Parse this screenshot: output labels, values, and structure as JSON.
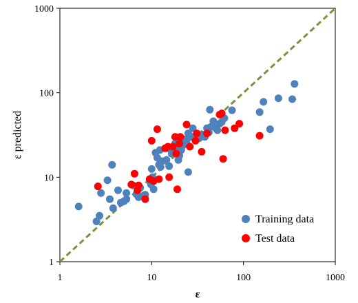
{
  "chart_data": {
    "type": "scatter",
    "title": "",
    "xlabel": "ε",
    "ylabel": "ε  predicted",
    "xscale": "log",
    "yscale": "log",
    "xlim": [
      1,
      1000
    ],
    "ylim": [
      1,
      1000
    ],
    "xticks": [
      1,
      10,
      100,
      1000
    ],
    "yticks": [
      1,
      10,
      100,
      1000
    ],
    "xtick_labels": [
      "1",
      "10",
      "100",
      "1000"
    ],
    "ytick_labels": [
      "1",
      "10",
      "100",
      "1000"
    ],
    "grid": false,
    "legend_position": "bottom-right",
    "reference_line": {
      "type": "y=x",
      "style": "dashed",
      "color": "#77933c"
    },
    "series": [
      {
        "name": "Training data",
        "color": "#4f81bd",
        "points": [
          [
            1.6,
            4.5
          ],
          [
            2.5,
            3.0
          ],
          [
            2.7,
            3.5
          ],
          [
            2.8,
            6.5
          ],
          [
            3.3,
            9.2
          ],
          [
            3.5,
            5.5
          ],
          [
            3.7,
            14.0
          ],
          [
            3.8,
            4.3
          ],
          [
            4.3,
            7.0
          ],
          [
            4.6,
            5.0
          ],
          [
            5.0,
            5.2
          ],
          [
            5.3,
            5.5
          ],
          [
            5.3,
            6.5
          ],
          [
            6.3,
            8.0
          ],
          [
            6.8,
            6.3
          ],
          [
            7.2,
            5.8
          ],
          [
            7.5,
            7.5
          ],
          [
            8.0,
            6.0
          ],
          [
            8.5,
            6.2
          ],
          [
            9.5,
            9.0
          ],
          [
            9.8,
            8.2
          ],
          [
            10.0,
            12.5
          ],
          [
            10.2,
            10.0
          ],
          [
            10.5,
            7.2
          ],
          [
            11.0,
            19.5
          ],
          [
            11.5,
            17.0
          ],
          [
            12.0,
            14.0
          ],
          [
            12.3,
            21.0
          ],
          [
            12.5,
            13.2
          ],
          [
            13.0,
            15.5
          ],
          [
            14.5,
            16.0
          ],
          [
            15.0,
            22.0
          ],
          [
            15.5,
            13.5
          ],
          [
            16.5,
            19.0
          ],
          [
            17.5,
            20.0
          ],
          [
            18.0,
            25.0
          ],
          [
            18.5,
            22.0
          ],
          [
            19.5,
            16.0
          ],
          [
            20.0,
            18.0
          ],
          [
            21.0,
            21.0
          ],
          [
            22.0,
            24.0
          ],
          [
            23.0,
            28.0
          ],
          [
            24.0,
            26.0
          ],
          [
            25.0,
            33.0
          ],
          [
            25.0,
            11.5
          ],
          [
            26.0,
            31.0
          ],
          [
            27.0,
            30.0
          ],
          [
            28.0,
            38.0
          ],
          [
            30.0,
            28.0
          ],
          [
            33.0,
            29.0
          ],
          [
            36.0,
            32.0
          ],
          [
            38.0,
            30.0
          ],
          [
            40.0,
            38.0
          ],
          [
            42.0,
            34.0
          ],
          [
            43.0,
            63.0
          ],
          [
            45.0,
            40.0
          ],
          [
            47.0,
            46.0
          ],
          [
            50.0,
            38.0
          ],
          [
            52.0,
            36.0
          ],
          [
            55.0,
            43.0
          ],
          [
            58.0,
            45.0
          ],
          [
            62.0,
            50.0
          ],
          [
            75.0,
            62.0
          ],
          [
            150.0,
            59.0
          ],
          [
            165.0,
            78.0
          ],
          [
            195.0,
            37.0
          ],
          [
            240.0,
            86.0
          ],
          [
            340.0,
            84.0
          ],
          [
            360.0,
            127.0
          ]
        ]
      },
      {
        "name": "Test data",
        "color": "#ff0000",
        "points": [
          [
            2.6,
            7.8
          ],
          [
            6.0,
            8.2
          ],
          [
            6.5,
            11.0
          ],
          [
            7.0,
            7.0
          ],
          [
            7.2,
            8.0
          ],
          [
            8.5,
            5.5
          ],
          [
            9.5,
            9.5
          ],
          [
            10.0,
            27.0
          ],
          [
            10.5,
            9.0
          ],
          [
            11.5,
            37.0
          ],
          [
            12.0,
            9.5
          ],
          [
            14.0,
            22.0
          ],
          [
            15.0,
            23.0
          ],
          [
            15.5,
            10.0
          ],
          [
            17.0,
            23.0
          ],
          [
            18.0,
            30.0
          ],
          [
            18.5,
            19.0
          ],
          [
            19.0,
            7.2
          ],
          [
            20.0,
            25.0
          ],
          [
            20.5,
            30.0
          ],
          [
            24.0,
            42.0
          ],
          [
            26.0,
            23.0
          ],
          [
            30.0,
            27.0
          ],
          [
            31.0,
            33.0
          ],
          [
            35.0,
            20.0
          ],
          [
            40.0,
            33.0
          ],
          [
            55.0,
            55.0
          ],
          [
            58.0,
            57.0
          ],
          [
            60.0,
            16.5
          ],
          [
            63.0,
            36.0
          ],
          [
            80.0,
            38.0
          ],
          [
            90.0,
            43.0
          ],
          [
            150.0,
            31.0
          ]
        ]
      }
    ]
  }
}
